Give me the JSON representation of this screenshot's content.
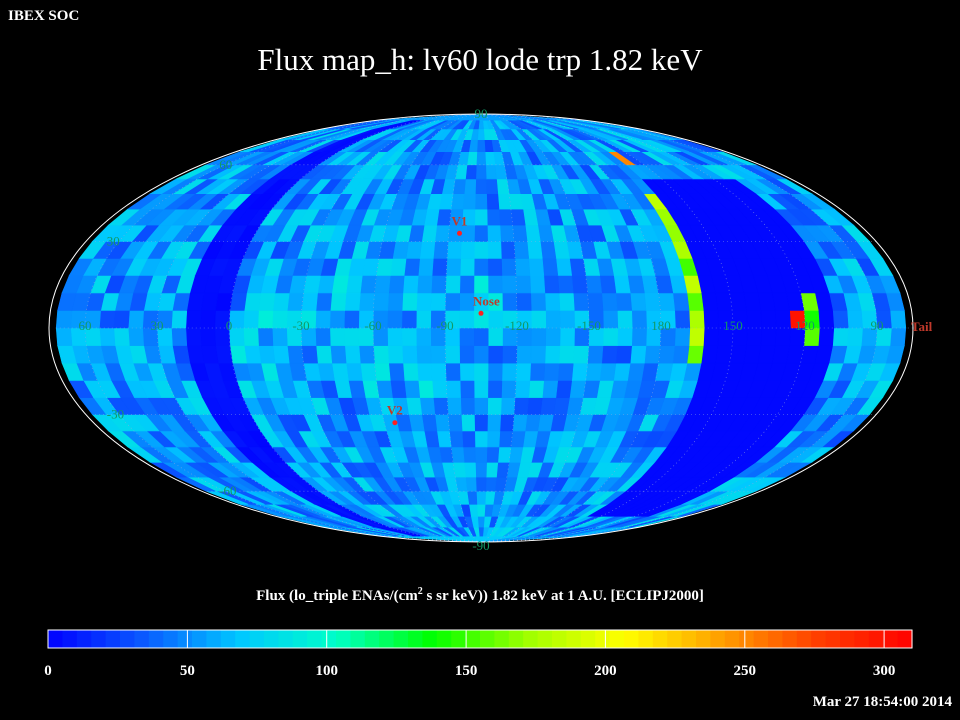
{
  "header": {
    "org": "IBEX SOC",
    "timestamp": "Mar 27 18:54:00 2014"
  },
  "chart_data": {
    "type": "heatmap",
    "projection": "Mollweide (full-sky)",
    "title": "Flux map_h: lv60 lode trp 1.82 keV",
    "colorbar_label": "Flux (lo_triple ENAs/(cm",
    "colorbar_label_sup": "2",
    "colorbar_label_rest": " s sr keV)) 1.82 keV at 1 A.U. [ECLIPJ2000]",
    "colorbar": {
      "min": 0,
      "max": 310,
      "ticks": [
        "0",
        "50",
        "100",
        "150",
        "200",
        "250",
        "300"
      ],
      "tick_values": [
        0,
        50,
        100,
        150,
        200,
        250,
        300
      ],
      "colors": [
        "#0000ff",
        "#0a5aff",
        "#00c8ff",
        "#00ffc8",
        "#00ff00",
        "#a0ff00",
        "#ffff00",
        "#ffa000",
        "#ff4000",
        "#ff0000"
      ]
    },
    "longitude_labels": [
      {
        "text": "60",
        "lon": 60
      },
      {
        "text": "30",
        "lon": 30
      },
      {
        "text": "0",
        "lon": 0
      },
      {
        "text": "-30",
        "lon": -30
      },
      {
        "text": "-60",
        "lon": -60
      },
      {
        "text": "-90",
        "lon": -90
      },
      {
        "text": "-120",
        "lon": -120
      },
      {
        "text": "-150",
        "lon": -150
      },
      {
        "text": "180",
        "lon": 180
      },
      {
        "text": "150",
        "lon": 150
      },
      {
        "text": "120",
        "lon": 120
      },
      {
        "text": "90",
        "lon": 90
      }
    ],
    "latitude_labels": [
      {
        "text": "90",
        "lat": 90
      },
      {
        "text": "60",
        "lat": 60
      },
      {
        "text": "30",
        "lat": 30
      },
      {
        "text": "-30",
        "lat": -30
      },
      {
        "text": "-60",
        "lat": -60
      },
      {
        "text": "-90",
        "lat": -90
      }
    ],
    "markers": [
      {
        "text": "V1",
        "lon": -95,
        "lat": 33
      },
      {
        "text": "Nose",
        "lon": -105,
        "lat": 5
      },
      {
        "text": "V2",
        "lon": -65,
        "lat": -33
      },
      {
        "text": "Tail",
        "lon": 75,
        "lat": 0
      }
    ],
    "regions": {
      "background_flux": 55,
      "low_flux_band_lon": [
        0,
        20
      ],
      "low_flux_band_east_lon": [
        110,
        160
      ],
      "ribbon_hotspot_flux": 300
    }
  }
}
